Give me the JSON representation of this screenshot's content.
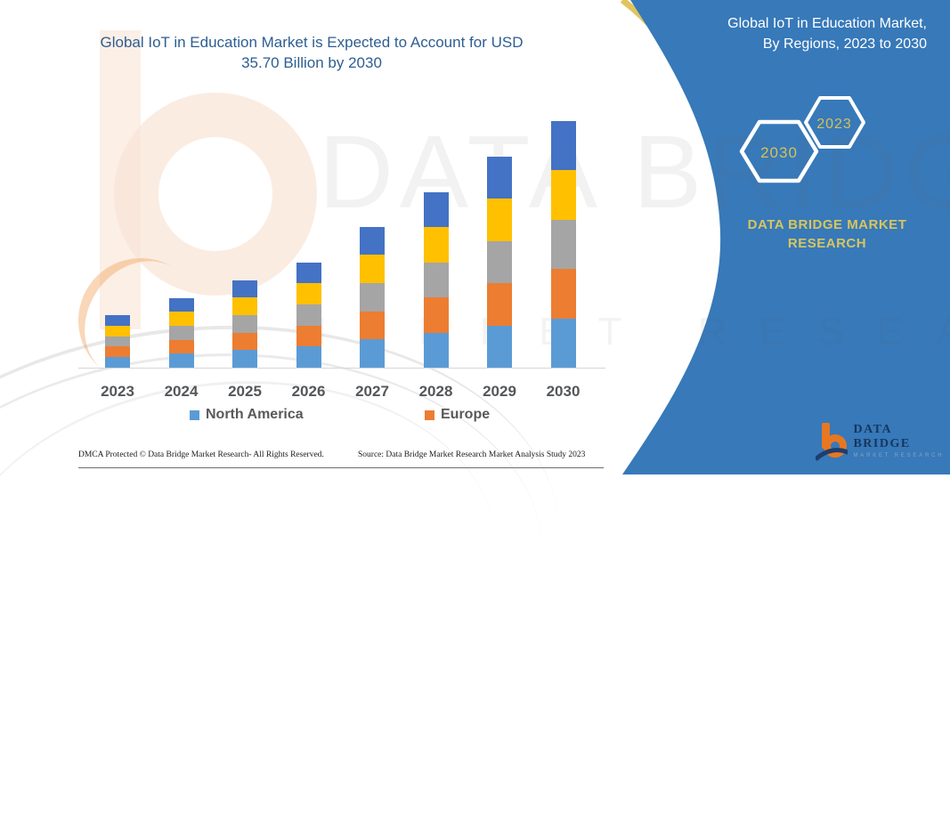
{
  "title": {
    "line1": "Global IoT in Education Market is Expected to Account for USD",
    "line2": "35.70 Billion by 2030",
    "color": "#2D5E92"
  },
  "banner": {
    "color": "#3779B9",
    "heading_line1": "Global IoT in Education Market,",
    "heading_line2": "By Regions, 2023 to 2030",
    "hex_left_label": "2030",
    "hex_right_label": "2023",
    "brand_line1": "DATA BRIDGE MARKET",
    "brand_line2": "RESEARCH",
    "gold_color": "#D8C55E"
  },
  "logo": {
    "name": "DATA BRIDGE",
    "subtitle": "MARKET RESEARCH"
  },
  "watermark": {
    "text1": "DATA BRIDGE",
    "text2": "MARKET RESEARCH"
  },
  "chart_data": {
    "type": "bar",
    "stacked": true,
    "title": "Global IoT in Education Market, By Regions, 2023 to 2030",
    "unit": "USD Billion",
    "categories": [
      "2023",
      "2024",
      "2025",
      "2026",
      "2027",
      "2028",
      "2029",
      "2030"
    ],
    "series": [
      {
        "name": "North America",
        "color": "#5B9BD5",
        "in_legend": true,
        "values": [
          1.52,
          2.02,
          2.53,
          3.05,
          4.08,
          5.08,
          6.11,
          7.14
        ]
      },
      {
        "name": "Europe",
        "color": "#ED7D31",
        "in_legend": true,
        "values": [
          1.52,
          2.02,
          2.53,
          3.05,
          4.08,
          5.08,
          6.11,
          7.14
        ]
      },
      {
        "name": "(unlabeled gray series)",
        "color": "#A5A5A5",
        "in_legend": false,
        "values": [
          1.52,
          2.02,
          2.53,
          3.05,
          4.08,
          5.08,
          6.11,
          7.14
        ]
      },
      {
        "name": "(unlabeled yellow series)",
        "color": "#FFC000",
        "in_legend": false,
        "values": [
          1.52,
          2.02,
          2.53,
          3.05,
          4.08,
          5.08,
          6.11,
          7.14
        ]
      },
      {
        "name": "(unlabeled dark-blue series)",
        "color": "#4472C4",
        "in_legend": false,
        "values": [
          1.52,
          2.02,
          2.53,
          3.05,
          4.08,
          5.08,
          6.11,
          7.14
        ]
      }
    ],
    "totals": [
      7.6,
      10.1,
      12.7,
      15.2,
      20.4,
      25.4,
      30.6,
      35.7
    ],
    "ylim": [
      0,
      36
    ],
    "gridlines": false,
    "axis_labels_visible": false,
    "legend_position": "bottom",
    "note": "2030 total stated on image as USD 35.70 billion; other totals estimated from bar heights; each bar splits into five approximately equal regional segments"
  },
  "legend": {
    "items": [
      {
        "label": "North America",
        "color": "#5B9BD5"
      },
      {
        "label": "Europe",
        "color": "#ED7D31"
      }
    ]
  },
  "footer": {
    "dmca": "DMCA Protected © Data Bridge Market Research-  All Rights Reserved.",
    "source": "Source: Data Bridge Market Research  Market Analysis Study 2023"
  }
}
